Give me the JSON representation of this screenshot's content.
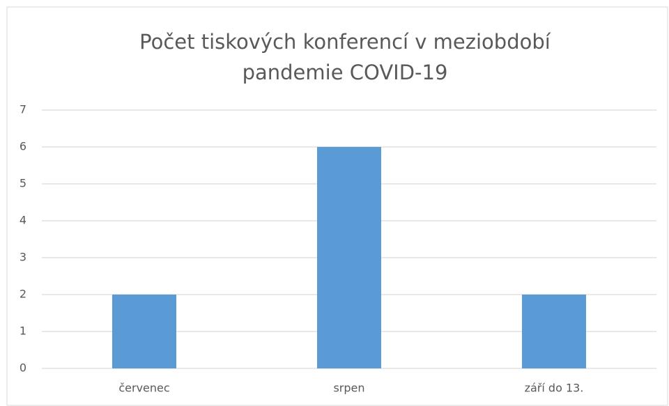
{
  "chart_data": {
    "type": "bar",
    "title": "Počet tiskových konferencí v meziobdobí pandemie COVID-19",
    "categories": [
      "červenec",
      "srpen",
      "září do 13."
    ],
    "values": [
      2,
      6,
      2
    ],
    "color": "#5b9bd5",
    "ylim": [
      0,
      7
    ],
    "yticks": [
      0,
      1,
      2,
      3,
      4,
      5,
      6,
      7
    ],
    "grid": true
  }
}
